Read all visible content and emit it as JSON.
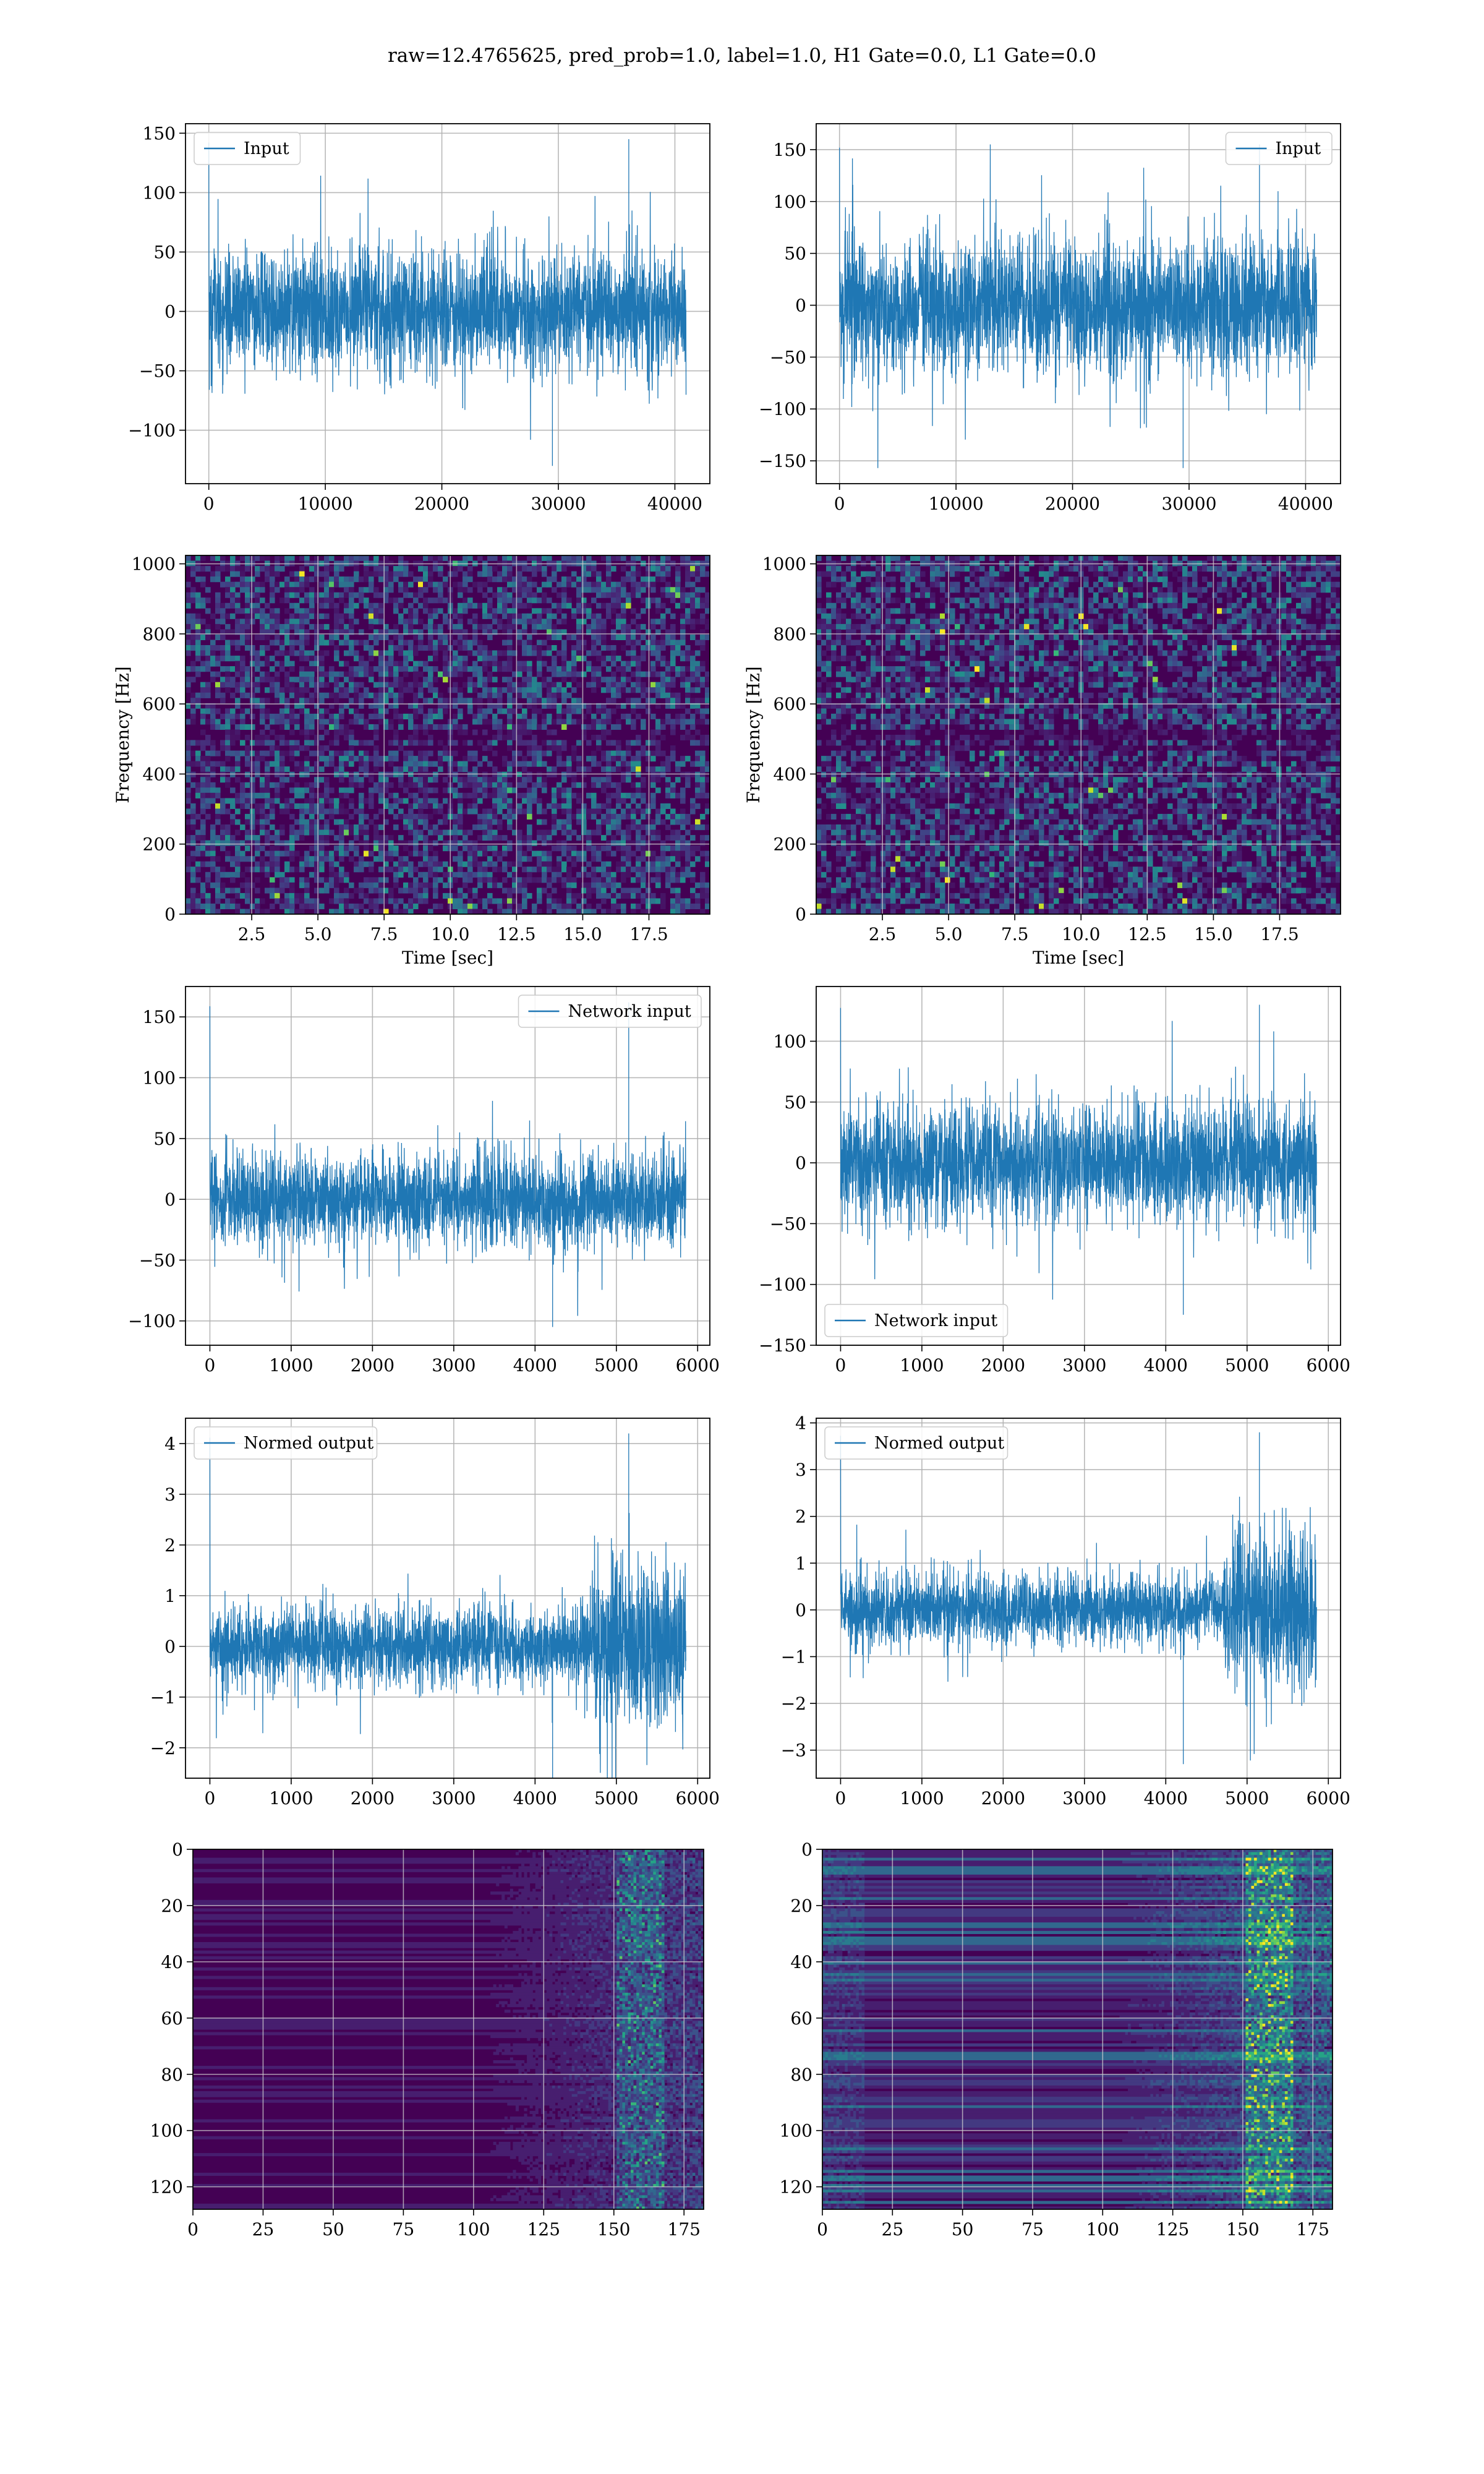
{
  "title": "raw=12.4765625, pred_prob=1.0, label=1.0, H1 Gate=0.0, L1 Gate=0.0",
  "colors": {
    "series": "#1f77b4",
    "grid": "#b0b0b0",
    "viridis_low": "#440154",
    "viridis_high": "#fde725"
  },
  "chart_data": [
    {
      "id": "r1c1",
      "type": "line",
      "series": [
        {
          "name": "Input",
          "kind": "noise",
          "n": 40960,
          "amplitude_typical": 60,
          "peak_max": 145,
          "peak_min": -130
        }
      ],
      "xlim": [
        -2000,
        43000
      ],
      "ylim": [
        -145,
        158
      ],
      "xticks": [
        0,
        10000,
        20000,
        30000,
        40000
      ],
      "yticks": [
        -100,
        -50,
        0,
        50,
        100,
        150
      ],
      "xlabel": "",
      "ylabel": "",
      "legend": "upper-left",
      "grid": true
    },
    {
      "id": "r1c2",
      "type": "line",
      "series": [
        {
          "name": "Input",
          "kind": "noise",
          "n": 40960,
          "amplitude_typical": 75,
          "peak_max": 155,
          "peak_min": -157
        }
      ],
      "xlim": [
        -2000,
        43000
      ],
      "ylim": [
        -172,
        175
      ],
      "xticks": [
        0,
        10000,
        20000,
        30000,
        40000
      ],
      "yticks": [
        -150,
        -100,
        -50,
        0,
        50,
        100,
        150
      ],
      "xlabel": "",
      "ylabel": "",
      "legend": "upper-right",
      "grid": true
    },
    {
      "id": "r2c1",
      "type": "heatmap",
      "kind": "spectrogram",
      "xlim": [
        0,
        19.8
      ],
      "ylim": [
        0,
        1024
      ],
      "xticks": [
        2.5,
        5.0,
        7.5,
        10.0,
        12.5,
        15.0,
        17.5
      ],
      "yticks": [
        0,
        200,
        400,
        600,
        800,
        1000
      ],
      "xlabel": "Time [sec]",
      "ylabel": "Frequency [Hz]",
      "colormap": "viridis",
      "grid": true
    },
    {
      "id": "r2c2",
      "type": "heatmap",
      "kind": "spectrogram",
      "xlim": [
        0,
        19.8
      ],
      "ylim": [
        0,
        1024
      ],
      "xticks": [
        2.5,
        5.0,
        7.5,
        10.0,
        12.5,
        15.0,
        17.5
      ],
      "yticks": [
        0,
        200,
        400,
        600,
        800,
        1000
      ],
      "xlabel": "Time [sec]",
      "ylabel": "Frequency [Hz]",
      "colormap": "viridis",
      "grid": true
    },
    {
      "id": "r3c1",
      "type": "line",
      "series": [
        {
          "name": "Network input",
          "kind": "noise",
          "n": 5856,
          "amplitude_typical": 45,
          "peak_max": 162,
          "peak_min": -105
        }
      ],
      "xlim": [
        -300,
        6150
      ],
      "ylim": [
        -120,
        175
      ],
      "xticks": [
        0,
        1000,
        2000,
        3000,
        4000,
        5000,
        6000
      ],
      "yticks": [
        -100,
        -50,
        0,
        50,
        100,
        150
      ],
      "xlabel": "",
      "ylabel": "",
      "legend": "upper-right",
      "grid": true
    },
    {
      "id": "r3c2",
      "type": "line",
      "series": [
        {
          "name": "Network input",
          "kind": "noise",
          "n": 5856,
          "amplitude_typical": 55,
          "peak_max": 130,
          "peak_min": -125
        }
      ],
      "xlim": [
        -300,
        6150
      ],
      "ylim": [
        -150,
        145
      ],
      "xticks": [
        0,
        1000,
        2000,
        3000,
        4000,
        5000,
        6000
      ],
      "yticks": [
        -150,
        -100,
        -50,
        0,
        50,
        100
      ],
      "xlabel": "",
      "ylabel": "",
      "legend": "lower-left",
      "grid": true
    },
    {
      "id": "r4c1",
      "type": "line",
      "series": [
        {
          "name": "Normed output",
          "kind": "noise_burst",
          "n": 5856,
          "amplitude_typical": 0.9,
          "burst_start": 4700,
          "burst_end": 5850,
          "burst_amplitude": 2.2,
          "peak_max": 4.2,
          "peak_min": -2.6
        }
      ],
      "xlim": [
        -300,
        6150
      ],
      "ylim": [
        -2.6,
        4.5
      ],
      "xticks": [
        0,
        1000,
        2000,
        3000,
        4000,
        5000,
        6000
      ],
      "yticks": [
        -2,
        -1,
        0,
        1,
        2,
        3,
        4
      ],
      "xlabel": "",
      "ylabel": "",
      "legend": "upper-left",
      "grid": true
    },
    {
      "id": "r4c2",
      "type": "line",
      "series": [
        {
          "name": "Normed output",
          "kind": "noise_burst",
          "n": 5856,
          "amplitude_typical": 0.9,
          "burst_start": 4700,
          "burst_end": 5850,
          "burst_amplitude": 2.2,
          "peak_max": 3.8,
          "peak_min": -3.3
        }
      ],
      "xlim": [
        -300,
        6150
      ],
      "ylim": [
        -3.6,
        4.1
      ],
      "xticks": [
        0,
        1000,
        2000,
        3000,
        4000,
        5000,
        6000
      ],
      "yticks": [
        -3,
        -2,
        -1,
        0,
        1,
        2,
        3,
        4
      ],
      "xlabel": "",
      "ylabel": "",
      "legend": "upper-left",
      "grid": true
    },
    {
      "id": "r5c1",
      "type": "heatmap",
      "kind": "activations",
      "xlim": [
        0,
        182
      ],
      "ylim": [
        128,
        0
      ],
      "xticks": [
        0,
        25,
        50,
        75,
        100,
        125,
        150,
        175
      ],
      "yticks": [
        0,
        20,
        40,
        60,
        80,
        100,
        120
      ],
      "xlabel": "",
      "ylabel": "",
      "colormap": "viridis",
      "grid": true
    },
    {
      "id": "r5c2",
      "type": "heatmap",
      "kind": "activations",
      "xlim": [
        0,
        182
      ],
      "ylim": [
        128,
        0
      ],
      "xticks": [
        0,
        25,
        50,
        75,
        100,
        125,
        150,
        175
      ],
      "yticks": [
        0,
        20,
        40,
        60,
        80,
        100,
        120
      ],
      "xlabel": "",
      "ylabel": "",
      "colormap": "viridis",
      "grid": true
    }
  ]
}
